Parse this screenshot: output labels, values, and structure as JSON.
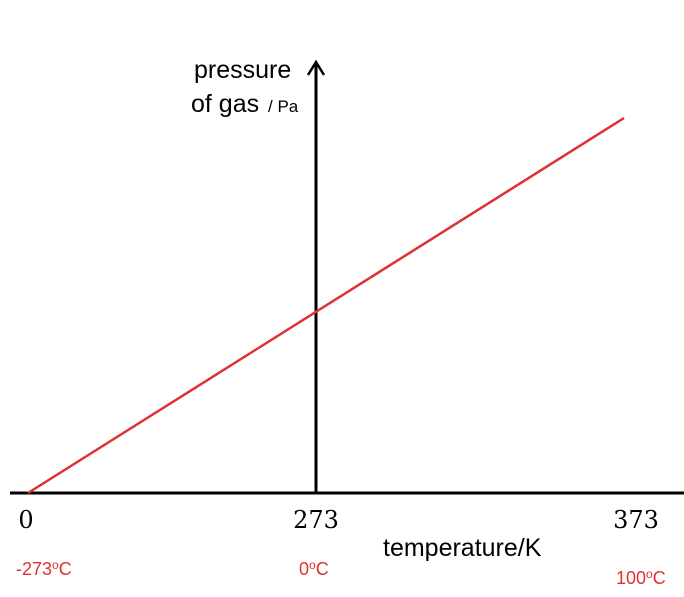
{
  "chart_data": {
    "type": "line",
    "xlabel": "temperature/K",
    "ylabel": {
      "line1": "pressure",
      "line2": "of gas",
      "unit": "/ Pa"
    },
    "x_ticks": [
      {
        "value": 0,
        "label": "0",
        "celsius": "-273",
        "celsius_unit": "C"
      },
      {
        "value": 273,
        "label": "273",
        "celsius": "0",
        "celsius_unit": "C"
      },
      {
        "value": 373,
        "label": "373",
        "celsius": "100",
        "celsius_unit": "C"
      }
    ],
    "degree_symbol": "o",
    "series": [
      {
        "x": [
          0,
          373
        ],
        "y": [
          0,
          1
        ]
      }
    ],
    "colors": {
      "line": "#e03131",
      "celsius_labels": "#e03131",
      "axes": "#000000",
      "text": "#000000"
    }
  }
}
